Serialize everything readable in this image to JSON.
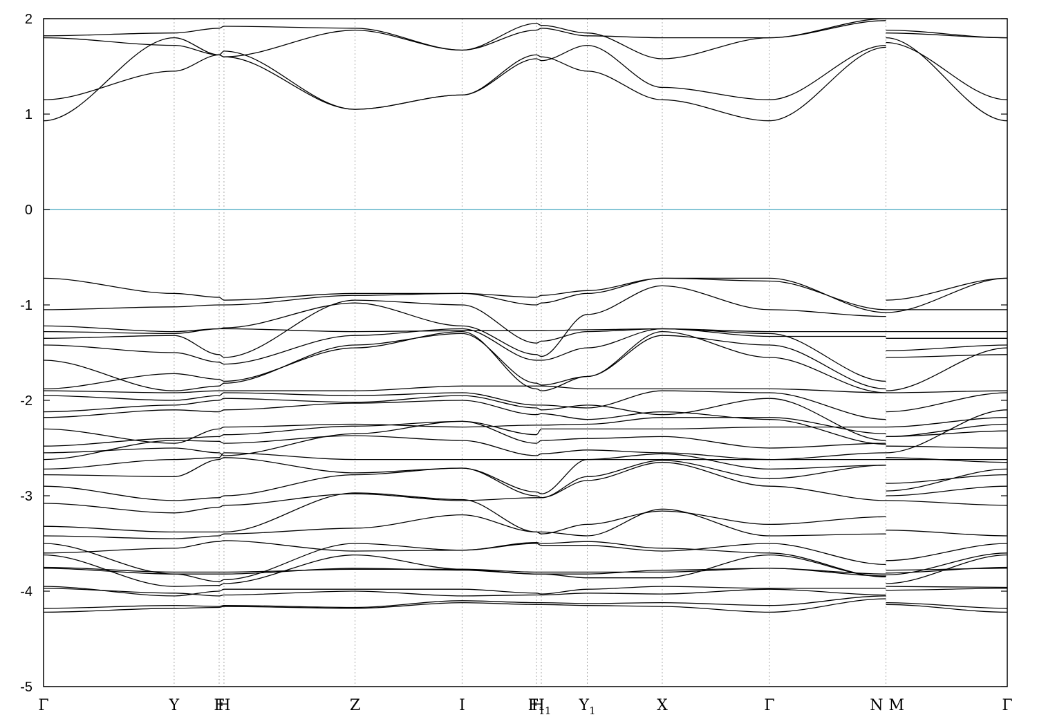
{
  "chart_data": {
    "type": "line",
    "title": "",
    "xlabel": "",
    "ylabel": "",
    "ylim": [
      -5,
      2
    ],
    "yticks": [
      -5,
      -4,
      -3,
      -2,
      -1,
      0,
      1,
      2
    ],
    "xlim": [
      0,
      1.0
    ],
    "grid": "dotted vertical lines at high-symmetry points",
    "kpoints": [
      {
        "label": "Γ",
        "sub": "",
        "x": 0.0
      },
      {
        "label": "Y",
        "sub": "",
        "x": 0.1355
      },
      {
        "label": "F",
        "sub": "",
        "x": 0.1822
      },
      {
        "label": "H",
        "sub": "",
        "x": 0.1872
      },
      {
        "label": "Z",
        "sub": "",
        "x": 0.3232
      },
      {
        "label": "I",
        "sub": "",
        "x": 0.4343
      },
      {
        "label": "F",
        "sub": "1",
        "x": 0.5115
      },
      {
        "label": "H",
        "sub": "1",
        "x": 0.5165
      },
      {
        "label": "Y",
        "sub": "1",
        "x": 0.5642
      },
      {
        "label": "X",
        "sub": "",
        "x": 0.642
      },
      {
        "label": "Γ",
        "sub": "",
        "x": 0.7532
      },
      {
        "label": "N",
        "sub": "",
        "x": 0.8741
      },
      {
        "label": "M",
        "sub": "",
        "x": 0.8741
      },
      {
        "label": "Γ",
        "sub": "",
        "x": 1.0
      }
    ],
    "fermi_level": {
      "y": 0,
      "color": "#5fb3c8"
    },
    "colors": {
      "bands": "#000000",
      "fermi": "#5fb3c8",
      "grid": "#aaaaaa"
    },
    "series_x": [
      0.0,
      0.1355,
      0.1822,
      0.1872,
      0.3232,
      0.4343,
      0.5115,
      0.5165,
      0.5642,
      0.642,
      0.7532,
      0.8741,
      0.8741,
      1.0
    ],
    "series": [
      {
        "values": [
          -4.22,
          -4.18,
          -4.17,
          -4.16,
          -4.18,
          -4.12,
          -4.14,
          -4.14,
          -4.15,
          -4.16,
          -4.22,
          -4.08,
          -4.14,
          -4.22
        ]
      },
      {
        "values": [
          -4.18,
          -4.15,
          -4.16,
          -4.15,
          -4.17,
          -4.1,
          -4.12,
          -4.12,
          -4.13,
          -4.12,
          -4.15,
          -4.05,
          -4.12,
          -4.18
        ]
      },
      {
        "values": [
          -3.97,
          -4.02,
          -4.05,
          -4.04,
          -4.0,
          -4.05,
          -4.04,
          -4.04,
          -4.02,
          -4.03,
          -3.98,
          -4.04,
          -3.99,
          -3.97
        ]
      },
      {
        "values": [
          -3.95,
          -4.05,
          -4.0,
          -3.98,
          -3.98,
          -3.98,
          -4.02,
          -4.03,
          -3.98,
          -3.95,
          -3.97,
          -3.97,
          -3.95,
          -3.96
        ]
      },
      {
        "values": [
          -3.76,
          -3.82,
          -3.82,
          -3.82,
          -3.76,
          -3.78,
          -3.82,
          -3.82,
          -3.82,
          -3.78,
          -3.76,
          -3.82,
          -3.78,
          -3.76
        ]
      },
      {
        "values": [
          -3.75,
          -3.8,
          -3.8,
          -3.8,
          -3.77,
          -3.77,
          -3.8,
          -3.8,
          -3.8,
          -3.8,
          -3.76,
          -3.84,
          -3.81,
          -3.75
        ]
      },
      {
        "values": [
          -3.62,
          -3.95,
          -3.94,
          -3.92,
          -3.62,
          -3.77,
          -3.82,
          -3.82,
          -3.86,
          -3.86,
          -3.62,
          -3.85,
          -3.92,
          -3.62
        ]
      },
      {
        "values": [
          -3.6,
          -3.55,
          -3.48,
          -3.47,
          -3.58,
          -3.57,
          -3.5,
          -3.52,
          -3.52,
          -3.58,
          -3.5,
          -3.72,
          -3.83,
          -3.6
        ]
      },
      {
        "values": [
          -3.5,
          -3.82,
          -3.9,
          -3.88,
          -3.5,
          -3.57,
          -3.49,
          -3.5,
          -3.48,
          -3.55,
          -3.6,
          -3.85,
          -3.68,
          -3.5
        ]
      },
      {
        "values": [
          -3.42,
          -3.45,
          -3.42,
          -3.4,
          -3.34,
          -3.2,
          -3.38,
          -3.38,
          -3.42,
          -3.14,
          -3.42,
          -3.4,
          -3.36,
          -3.42
        ]
      },
      {
        "values": [
          -3.32,
          -3.38,
          -3.38,
          -3.38,
          -2.97,
          -3.04,
          -3.38,
          -3.4,
          -3.3,
          -3.16,
          -3.3,
          -3.22,
          -3.05,
          -3.1
        ]
      },
      {
        "values": [
          -3.08,
          -3.18,
          -3.12,
          -3.1,
          -2.98,
          -3.05,
          -3.02,
          -3.02,
          -2.84,
          -2.65,
          -2.9,
          -3.05,
          -3.0,
          -2.9
        ]
      },
      {
        "values": [
          -2.9,
          -3.05,
          -3.02,
          -3.0,
          -2.78,
          -2.71,
          -3.0,
          -3.02,
          -2.8,
          -2.63,
          -2.82,
          -2.68,
          -2.87,
          -2.78
        ]
      },
      {
        "values": [
          -2.78,
          -2.8,
          -2.62,
          -2.6,
          -2.76,
          -2.71,
          -2.96,
          -2.98,
          -2.62,
          -2.56,
          -2.72,
          -2.68,
          -2.95,
          -2.72
        ]
      },
      {
        "values": [
          -2.72,
          -2.62,
          -2.6,
          -2.55,
          -2.62,
          -2.62,
          -2.62,
          -2.62,
          -2.62,
          -2.62,
          -2.62,
          -2.62,
          -2.62,
          -2.62
        ]
      },
      {
        "values": [
          -2.62,
          -2.42,
          -2.43,
          -2.45,
          -2.37,
          -2.42,
          -2.58,
          -2.56,
          -2.52,
          -2.55,
          -2.62,
          -2.55,
          -2.6,
          -2.65
        ]
      },
      {
        "values": [
          -2.55,
          -2.5,
          -2.55,
          -2.58,
          -2.35,
          -2.22,
          -2.45,
          -2.42,
          -2.4,
          -2.38,
          -2.5,
          -2.45,
          -2.48,
          -2.5
        ]
      },
      {
        "values": [
          -2.48,
          -2.4,
          -2.38,
          -2.36,
          -2.27,
          -2.22,
          -2.36,
          -2.3,
          -2.3,
          -2.3,
          -2.28,
          -2.28,
          -2.38,
          -2.32
        ]
      },
      {
        "values": [
          -2.3,
          -2.45,
          -2.3,
          -2.28,
          -2.25,
          -2.28,
          -2.26,
          -2.26,
          -2.25,
          -2.18,
          -2.18,
          -2.35,
          -2.38,
          -2.25
        ]
      },
      {
        "values": [
          -2.18,
          -2.1,
          -2.12,
          -2.1,
          -2.03,
          -2.0,
          -2.15,
          -2.14,
          -2.2,
          -2.12,
          -2.2,
          -2.46,
          -2.28,
          -2.18
        ]
      },
      {
        "values": [
          -2.12,
          -2.05,
          -2.0,
          -1.98,
          -2.02,
          -1.95,
          -2.08,
          -2.1,
          -2.05,
          -2.15,
          -1.98,
          -2.42,
          -2.55,
          -2.1
        ]
      },
      {
        "values": [
          -1.95,
          -2.0,
          -1.95,
          -1.92,
          -1.95,
          -1.92,
          -2.05,
          -2.05,
          -2.08,
          -1.9,
          -1.92,
          -2.2,
          -2.12,
          -1.92
        ]
      },
      {
        "values": [
          -1.9,
          -1.92,
          -1.9,
          -1.9,
          -1.9,
          -1.85,
          -1.85,
          -1.85,
          -1.88,
          -1.88,
          -1.88,
          -1.92,
          -1.92,
          -1.9
        ]
      },
      {
        "values": [
          -1.88,
          -1.72,
          -1.78,
          -1.8,
          -1.45,
          -1.28,
          -1.88,
          -1.9,
          -1.75,
          -1.28,
          -1.55,
          -1.92,
          -1.9,
          -1.45
        ]
      },
      {
        "values": [
          -1.58,
          -1.9,
          -1.85,
          -1.82,
          -1.42,
          -1.3,
          -1.82,
          -1.84,
          -1.75,
          -1.32,
          -1.42,
          -1.88,
          -1.55,
          -1.52
        ]
      },
      {
        "values": [
          -1.42,
          -1.5,
          -1.6,
          -1.62,
          -1.32,
          -1.25,
          -1.58,
          -1.58,
          -1.45,
          -1.25,
          -1.3,
          -1.8,
          -1.48,
          -1.42
        ]
      },
      {
        "values": [
          -1.35,
          -1.32,
          -1.52,
          -1.55,
          -0.95,
          -1.0,
          -1.4,
          -1.38,
          -1.28,
          -1.25,
          -1.33,
          -1.33,
          -1.35,
          -1.35
        ]
      },
      {
        "values": [
          -1.28,
          -1.3,
          -1.25,
          -1.25,
          -1.28,
          -1.27,
          -1.27,
          -1.27,
          -1.26,
          -1.25,
          -1.28,
          -1.28,
          -1.28,
          -1.28
        ]
      },
      {
        "values": [
          -1.22,
          -1.28,
          -1.25,
          -1.24,
          -0.98,
          -1.22,
          -1.52,
          -1.54,
          -1.1,
          -0.8,
          -1.05,
          -1.12,
          -1.05,
          -1.05
        ]
      },
      {
        "values": [
          -1.05,
          -1.02,
          -1.0,
          -1.0,
          -0.9,
          -0.88,
          -1.0,
          -0.98,
          -0.88,
          -0.72,
          -0.75,
          -1.05,
          -0.95,
          -0.72
        ]
      },
      {
        "values": [
          -0.72,
          -0.88,
          -0.92,
          -0.95,
          -0.88,
          -0.88,
          -0.92,
          -0.9,
          -0.85,
          -0.72,
          -0.72,
          -1.08,
          -1.08,
          -0.72
        ]
      },
      {
        "values": [
          0.93,
          1.8,
          1.62,
          1.6,
          1.05,
          1.2,
          1.62,
          1.6,
          1.45,
          1.15,
          0.93,
          1.7,
          1.8,
          0.93
        ]
      },
      {
        "values": [
          1.15,
          1.45,
          1.62,
          1.66,
          1.05,
          1.2,
          1.58,
          1.56,
          1.72,
          1.28,
          1.15,
          1.72,
          1.75,
          1.15
        ]
      },
      {
        "values": [
          1.8,
          1.72,
          1.62,
          1.6,
          1.88,
          1.67,
          1.88,
          1.9,
          1.82,
          1.8,
          1.8,
          1.98,
          1.85,
          1.8
        ]
      },
      {
        "values": [
          1.82,
          1.85,
          1.9,
          1.92,
          1.9,
          1.67,
          1.95,
          1.93,
          1.85,
          1.58,
          1.8,
          2.0,
          1.88,
          1.8
        ]
      }
    ]
  }
}
